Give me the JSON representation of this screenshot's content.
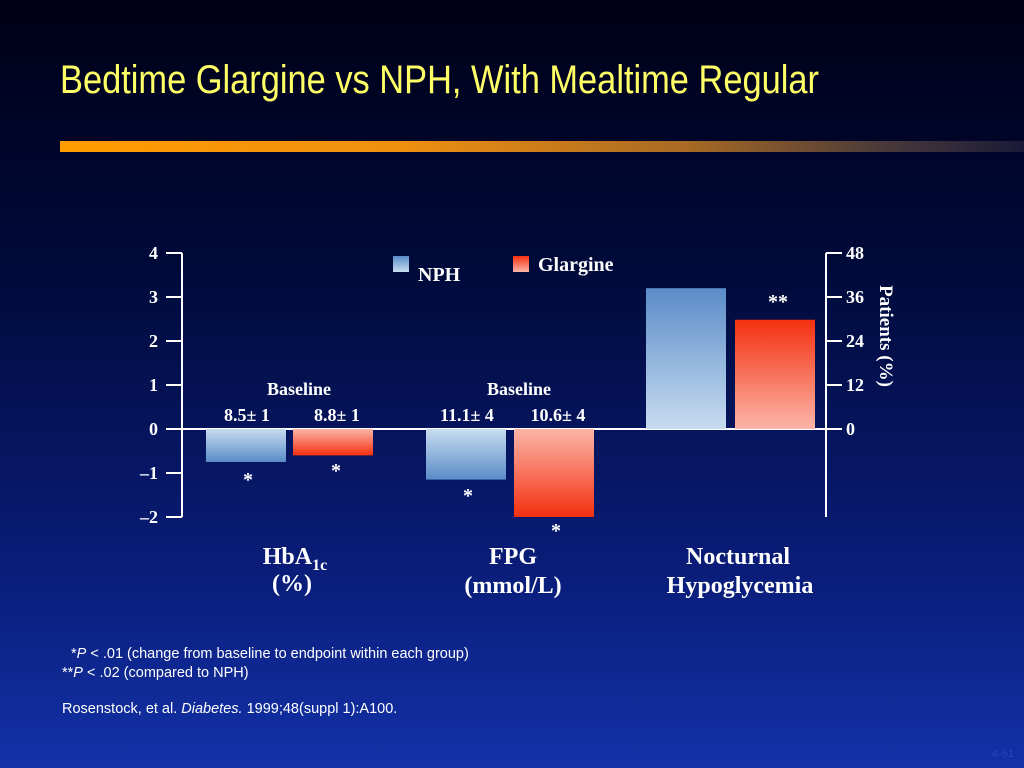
{
  "slide": {
    "title": "Bedtime Glargine vs NPH, With Mealtime Regular",
    "slide_number": "4-61"
  },
  "chart_data": {
    "type": "bar",
    "categories": [
      {
        "lines": [
          "HbA",
          "(%)"
        ],
        "subscript": "1c"
      },
      {
        "lines": [
          "FPG",
          "(mmol/L)"
        ]
      },
      {
        "lines": [
          "Nocturnal",
          "Hypoglycemia"
        ]
      }
    ],
    "series": [
      {
        "name": "NPH",
        "values": [
          -0.75,
          -1.15,
          38.4
        ],
        "color_top": "#5a8cc8",
        "color_bottom": "#c8dcf0"
      },
      {
        "name": "Glargine",
        "values": [
          -0.6,
          -2.0,
          29.8
        ],
        "color_top": "#f43010",
        "color_bottom": "#fbb5a8"
      }
    ],
    "value_axes": [
      {
        "side": "left",
        "ticks": [
          "4",
          "3",
          "2",
          "1",
          "0",
          "–1",
          "–2"
        ],
        "tick_values": [
          4,
          3,
          2,
          1,
          0,
          -1,
          -2
        ],
        "range": [
          -2,
          4
        ],
        "applies_to": [
          "HbA1c",
          "FPG"
        ]
      },
      {
        "side": "right",
        "label": "Patients (%)",
        "ticks": [
          "48",
          "36",
          "24",
          "12",
          "0"
        ],
        "tick_values": [
          48,
          36,
          24,
          12,
          0
        ],
        "range": [
          0,
          48
        ],
        "applies_to": [
          "Nocturnal Hypoglycemia"
        ]
      }
    ],
    "baselines": [
      {
        "label": "Baseline",
        "nph": "8.5± 1",
        "glargine": "8.8± 1"
      },
      {
        "label": "Baseline",
        "nph": "11.1± 4",
        "glargine": "10.6± 4"
      }
    ],
    "annotations": [
      {
        "category": 0,
        "series": "NPH",
        "text": "*"
      },
      {
        "category": 0,
        "series": "Glargine",
        "text": "*"
      },
      {
        "category": 1,
        "series": "NPH",
        "text": "*"
      },
      {
        "category": 1,
        "series": "Glargine",
        "text": "*"
      },
      {
        "category": 2,
        "series": "Glargine",
        "text": "**"
      }
    ],
    "legend_position": "top-center",
    "grid": false
  },
  "footnotes": [
    {
      "stars": "*",
      "p": "P",
      "text": " < .01 (change from baseline to endpoint within each group)"
    },
    {
      "stars": "**",
      "p": "P",
      "text": " < .02 (compared to NPH)"
    }
  ],
  "citation": {
    "authors": "Rosenstock, et al. ",
    "journal": "Diabetes.",
    "details": " 1999;48(suppl 1):A100."
  }
}
